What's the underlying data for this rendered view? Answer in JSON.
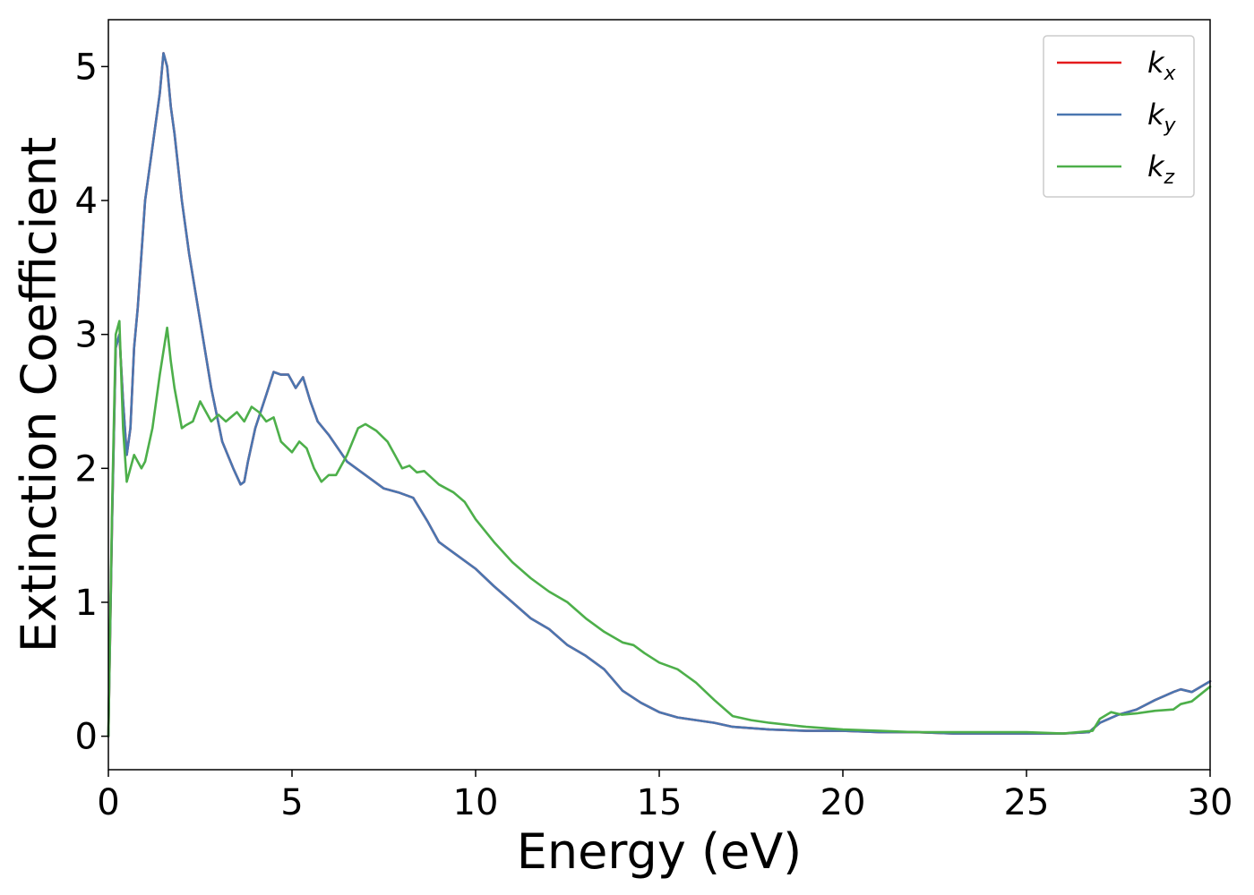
{
  "chart_data": {
    "type": "line",
    "xlabel": "Energy (eV)",
    "ylabel": "Extinction Coefficient",
    "xlim": [
      0,
      30
    ],
    "ylim": [
      -0.25,
      5.35
    ],
    "xticks": [
      0,
      5,
      10,
      15,
      20,
      25,
      30
    ],
    "yticks": [
      0,
      1,
      2,
      3,
      4,
      5
    ],
    "grid": false,
    "legend_position": "top-right",
    "series": [
      {
        "name": "k_x",
        "legend": {
          "base": "k",
          "sub": "x"
        },
        "color": "#e41a1c",
        "x": [
          0,
          0.1,
          0.2,
          0.3,
          0.4,
          0.5,
          0.6,
          0.7,
          0.8,
          1.0,
          1.2,
          1.3,
          1.4,
          1.5,
          1.6,
          1.7,
          1.8,
          2.0,
          2.2,
          2.5,
          2.8,
          3.1,
          3.4,
          3.6,
          3.7,
          3.8,
          4.0,
          4.3,
          4.5,
          4.7,
          4.9,
          5.0,
          5.1,
          5.3,
          5.5,
          5.7,
          6.0,
          6.5,
          7.0,
          7.5,
          7.9,
          8.3,
          8.7,
          9.0,
          9.5,
          10.0,
          10.5,
          11.0,
          11.5,
          12.0,
          12.5,
          13.0,
          13.5,
          14.0,
          14.5,
          15.0,
          15.5,
          16.0,
          16.5,
          17.0,
          17.5,
          18.0,
          19.0,
          20.0,
          21.0,
          22.0,
          23.0,
          24.0,
          25.0,
          26.0,
          26.7,
          27.0,
          27.5,
          28.0,
          28.5,
          29.0,
          29.2,
          29.5,
          30.0
        ],
        "values": [
          0.0,
          1.6,
          2.9,
          3.0,
          2.5,
          2.1,
          2.3,
          2.9,
          3.2,
          4.0,
          4.4,
          4.6,
          4.8,
          5.1,
          5.0,
          4.7,
          4.5,
          4.0,
          3.6,
          3.1,
          2.6,
          2.2,
          2.0,
          1.88,
          1.9,
          2.05,
          2.3,
          2.55,
          2.72,
          2.7,
          2.7,
          2.65,
          2.6,
          2.68,
          2.5,
          2.35,
          2.25,
          2.05,
          1.95,
          1.85,
          1.82,
          1.78,
          1.6,
          1.45,
          1.35,
          1.25,
          1.12,
          1.0,
          0.88,
          0.8,
          0.68,
          0.6,
          0.5,
          0.34,
          0.25,
          0.18,
          0.14,
          0.12,
          0.1,
          0.07,
          0.06,
          0.05,
          0.04,
          0.04,
          0.03,
          0.03,
          0.02,
          0.02,
          0.02,
          0.02,
          0.03,
          0.1,
          0.16,
          0.2,
          0.27,
          0.33,
          0.35,
          0.33,
          0.41
        ]
      },
      {
        "name": "k_y",
        "legend": {
          "base": "k",
          "sub": "y"
        },
        "color": "#4a76b0",
        "x": [
          0,
          0.1,
          0.2,
          0.3,
          0.4,
          0.5,
          0.6,
          0.7,
          0.8,
          1.0,
          1.2,
          1.3,
          1.4,
          1.5,
          1.6,
          1.7,
          1.8,
          2.0,
          2.2,
          2.5,
          2.8,
          3.1,
          3.4,
          3.6,
          3.7,
          3.8,
          4.0,
          4.3,
          4.5,
          4.7,
          4.9,
          5.0,
          5.1,
          5.3,
          5.5,
          5.7,
          6.0,
          6.5,
          7.0,
          7.5,
          7.9,
          8.3,
          8.7,
          9.0,
          9.5,
          10.0,
          10.5,
          11.0,
          11.5,
          12.0,
          12.5,
          13.0,
          13.5,
          14.0,
          14.5,
          15.0,
          15.5,
          16.0,
          16.5,
          17.0,
          17.5,
          18.0,
          19.0,
          20.0,
          21.0,
          22.0,
          23.0,
          24.0,
          25.0,
          26.0,
          26.7,
          27.0,
          27.5,
          28.0,
          28.5,
          29.0,
          29.2,
          29.5,
          30.0
        ],
        "values": [
          0.0,
          1.6,
          2.9,
          3.0,
          2.5,
          2.1,
          2.3,
          2.9,
          3.2,
          4.0,
          4.4,
          4.6,
          4.8,
          5.1,
          5.0,
          4.7,
          4.5,
          4.0,
          3.6,
          3.1,
          2.6,
          2.2,
          2.0,
          1.88,
          1.9,
          2.05,
          2.3,
          2.55,
          2.72,
          2.7,
          2.7,
          2.65,
          2.6,
          2.68,
          2.5,
          2.35,
          2.25,
          2.05,
          1.95,
          1.85,
          1.82,
          1.78,
          1.6,
          1.45,
          1.35,
          1.25,
          1.12,
          1.0,
          0.88,
          0.8,
          0.68,
          0.6,
          0.5,
          0.34,
          0.25,
          0.18,
          0.14,
          0.12,
          0.1,
          0.07,
          0.06,
          0.05,
          0.04,
          0.04,
          0.03,
          0.03,
          0.02,
          0.02,
          0.02,
          0.02,
          0.03,
          0.1,
          0.16,
          0.2,
          0.27,
          0.33,
          0.35,
          0.33,
          0.41
        ]
      },
      {
        "name": "k_z",
        "legend": {
          "base": "k",
          "sub": "z"
        },
        "color": "#4daf4a",
        "x": [
          0,
          0.1,
          0.2,
          0.3,
          0.4,
          0.5,
          0.7,
          0.9,
          1.0,
          1.2,
          1.4,
          1.6,
          1.7,
          1.8,
          2.0,
          2.1,
          2.3,
          2.5,
          2.6,
          2.8,
          3.0,
          3.2,
          3.5,
          3.7,
          3.9,
          4.1,
          4.3,
          4.5,
          4.7,
          5.0,
          5.2,
          5.4,
          5.6,
          5.8,
          6.0,
          6.2,
          6.5,
          6.8,
          7.0,
          7.3,
          7.6,
          7.8,
          8.0,
          8.2,
          8.4,
          8.6,
          9.0,
          9.4,
          9.7,
          10.0,
          10.5,
          11.0,
          11.5,
          12.0,
          12.5,
          13.0,
          13.5,
          14.0,
          14.3,
          14.6,
          15.0,
          15.5,
          16.0,
          16.5,
          17.0,
          17.5,
          18.0,
          19.0,
          20.0,
          21.0,
          22.0,
          23.0,
          24.0,
          25.0,
          26.0,
          26.8,
          27.0,
          27.3,
          27.6,
          28.0,
          28.5,
          29.0,
          29.2,
          29.5,
          30.0
        ],
        "values": [
          0.0,
          1.7,
          3.0,
          3.1,
          2.3,
          1.9,
          2.1,
          2.0,
          2.05,
          2.3,
          2.7,
          3.05,
          2.8,
          2.6,
          2.3,
          2.32,
          2.35,
          2.5,
          2.45,
          2.35,
          2.4,
          2.35,
          2.42,
          2.35,
          2.46,
          2.42,
          2.35,
          2.38,
          2.2,
          2.12,
          2.2,
          2.15,
          2.0,
          1.9,
          1.95,
          1.95,
          2.1,
          2.3,
          2.33,
          2.28,
          2.2,
          2.1,
          2.0,
          2.02,
          1.97,
          1.98,
          1.88,
          1.82,
          1.75,
          1.62,
          1.45,
          1.3,
          1.18,
          1.08,
          1.0,
          0.88,
          0.78,
          0.7,
          0.68,
          0.62,
          0.55,
          0.5,
          0.4,
          0.27,
          0.15,
          0.12,
          0.1,
          0.07,
          0.05,
          0.04,
          0.03,
          0.03,
          0.03,
          0.03,
          0.02,
          0.04,
          0.13,
          0.18,
          0.16,
          0.17,
          0.19,
          0.2,
          0.24,
          0.26,
          0.37
        ]
      }
    ]
  }
}
